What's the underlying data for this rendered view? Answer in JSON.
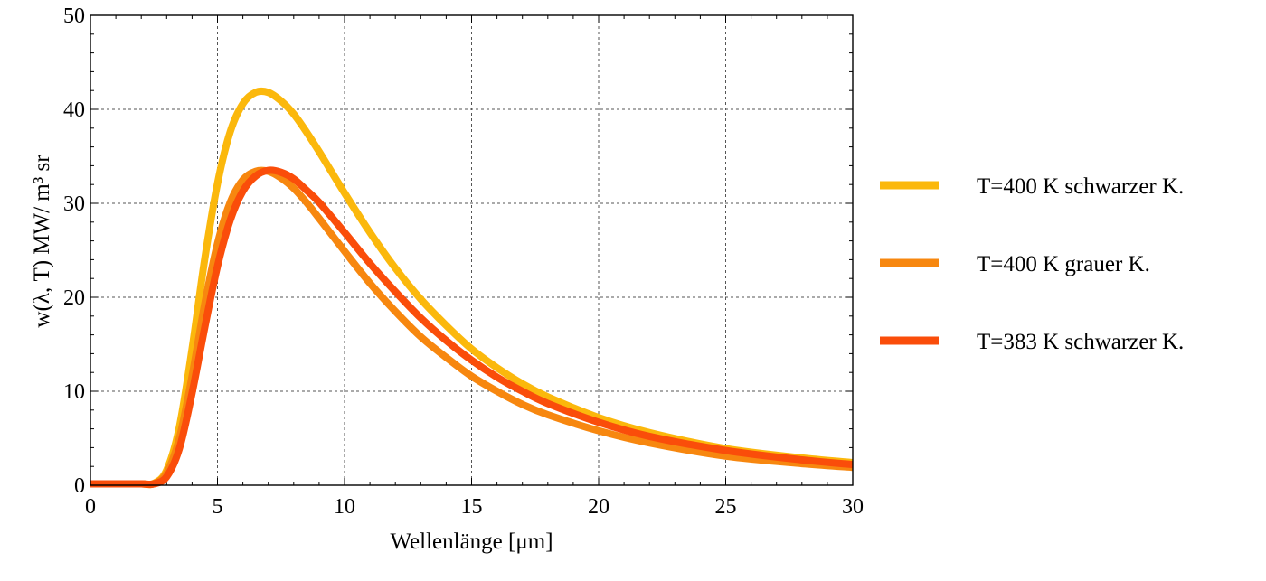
{
  "chart_data": {
    "type": "line",
    "xlabel": "Wellenlänge [μm]",
    "ylabel": "w(λ, T) MW/ m³ sr",
    "xlim": [
      0,
      30
    ],
    "ylim": [
      0,
      50
    ],
    "xticks": [
      0,
      5,
      10,
      15,
      20,
      25,
      30
    ],
    "yticks": [
      0,
      10,
      20,
      30,
      40,
      50
    ],
    "grid": true,
    "legend_position": "right",
    "series": [
      {
        "name": "T=400 K schwarzer K.",
        "color": "#FBB80C",
        "x": [
          0,
          1,
          2,
          2.5,
          3,
          3.5,
          4,
          4.5,
          5,
          5.5,
          6,
          6.5,
          7,
          7.5,
          8,
          8.5,
          9,
          10,
          11,
          12,
          13,
          14,
          15,
          16,
          17,
          18,
          20,
          22,
          25,
          28,
          30
        ],
        "values": [
          0,
          0,
          0.01,
          0.2,
          1.6,
          6.2,
          14.5,
          24.1,
          32.1,
          37.6,
          40.6,
          41.8,
          41.8,
          40.9,
          39.5,
          37.6,
          35.5,
          31.1,
          26.9,
          23.1,
          19.8,
          17.0,
          14.5,
          12.5,
          10.8,
          9.4,
          7.2,
          5.6,
          3.9,
          2.9,
          2.4
        ]
      },
      {
        "name": "T=400 K grauer K.",
        "color": "#F7870F",
        "x": [
          0,
          1,
          2,
          2.5,
          3,
          3.5,
          4,
          4.5,
          5,
          5.5,
          6,
          6.5,
          7,
          7.5,
          8,
          8.5,
          9,
          10,
          11,
          12,
          13,
          14,
          15,
          16,
          17,
          18,
          20,
          22,
          25,
          28,
          30
        ],
        "values": [
          0,
          0,
          0.01,
          0.16,
          1.3,
          5.0,
          11.6,
          19.3,
          25.7,
          30.1,
          32.5,
          33.4,
          33.4,
          32.7,
          31.6,
          30.1,
          28.4,
          24.9,
          21.5,
          18.5,
          15.8,
          13.6,
          11.6,
          10.0,
          8.6,
          7.5,
          5.8,
          4.5,
          3.1,
          2.3,
          1.9
        ]
      },
      {
        "name": "T=383 K schwarzer K.",
        "color": "#FA4D0A",
        "x": [
          0,
          1,
          2,
          2.5,
          3,
          3.5,
          4,
          4.5,
          5,
          5.5,
          6,
          6.5,
          7,
          7.5,
          8,
          8.5,
          9,
          10,
          11,
          12,
          13,
          14,
          15,
          16,
          17,
          18,
          20,
          22,
          25,
          28,
          30
        ],
        "values": [
          0,
          0,
          0.01,
          0.1,
          0.9,
          3.9,
          9.8,
          16.8,
          23.3,
          28.2,
          31.3,
          32.9,
          33.5,
          33.3,
          32.6,
          31.4,
          30.1,
          26.9,
          23.6,
          20.6,
          17.8,
          15.4,
          13.3,
          11.5,
          10.0,
          8.7,
          6.7,
          5.2,
          3.7,
          2.7,
          2.2
        ]
      }
    ]
  }
}
